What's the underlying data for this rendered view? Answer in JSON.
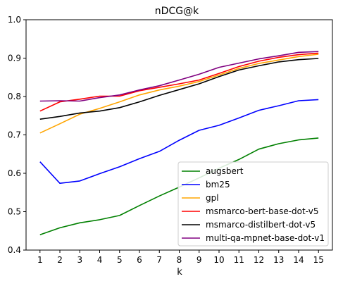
{
  "chart_data": {
    "type": "line",
    "title": "nDCG@k",
    "xlabel": "k",
    "ylabel": "",
    "x": [
      1,
      2,
      3,
      4,
      5,
      6,
      7,
      8,
      9,
      10,
      11,
      12,
      13,
      14,
      15
    ],
    "xlim": [
      0.3,
      15.7
    ],
    "ylim": [
      0.4,
      1.0
    ],
    "yticks": [
      "0.4",
      "0.5",
      "0.6",
      "0.7",
      "0.8",
      "0.9",
      "1.0"
    ],
    "xticks": [
      "1",
      "2",
      "3",
      "4",
      "5",
      "6",
      "7",
      "8",
      "9",
      "10",
      "11",
      "12",
      "13",
      "14",
      "15"
    ],
    "grid": false,
    "legend_position": "bottom-right",
    "series": [
      {
        "name": "augsbert",
        "color": "#008000",
        "values": [
          0.44,
          0.458,
          0.471,
          0.479,
          0.49,
          0.516,
          0.541,
          0.564,
          0.588,
          0.613,
          0.636,
          0.663,
          0.677,
          0.687,
          0.692
        ]
      },
      {
        "name": "bm25",
        "color": "#0000ff",
        "values": [
          0.63,
          0.574,
          0.58,
          0.599,
          0.617,
          0.638,
          0.657,
          0.686,
          0.712,
          0.725,
          0.744,
          0.764,
          0.776,
          0.789,
          0.792
        ]
      },
      {
        "name": "gpl",
        "color": "#ffa500",
        "values": [
          0.705,
          0.729,
          0.754,
          0.769,
          0.786,
          0.804,
          0.817,
          0.827,
          0.839,
          0.856,
          0.873,
          0.886,
          0.895,
          0.904,
          0.91
        ]
      },
      {
        "name": "msmarco-bert-base-dot-v5",
        "color": "#ff0000",
        "values": [
          0.762,
          0.786,
          0.793,
          0.801,
          0.801,
          0.815,
          0.824,
          0.833,
          0.843,
          0.86,
          0.878,
          0.892,
          0.902,
          0.909,
          0.913
        ]
      },
      {
        "name": "msmarco-distilbert-dot-v5",
        "color": "#000000",
        "values": [
          0.741,
          0.748,
          0.757,
          0.762,
          0.771,
          0.786,
          0.803,
          0.818,
          0.833,
          0.852,
          0.869,
          0.88,
          0.89,
          0.896,
          0.899
        ]
      },
      {
        "name": "multi-qa-mpnet-base-dot-v1",
        "color": "#800080",
        "values": [
          0.788,
          0.789,
          0.788,
          0.797,
          0.804,
          0.817,
          0.828,
          0.843,
          0.858,
          0.876,
          0.887,
          0.898,
          0.906,
          0.915,
          0.917
        ]
      }
    ]
  }
}
